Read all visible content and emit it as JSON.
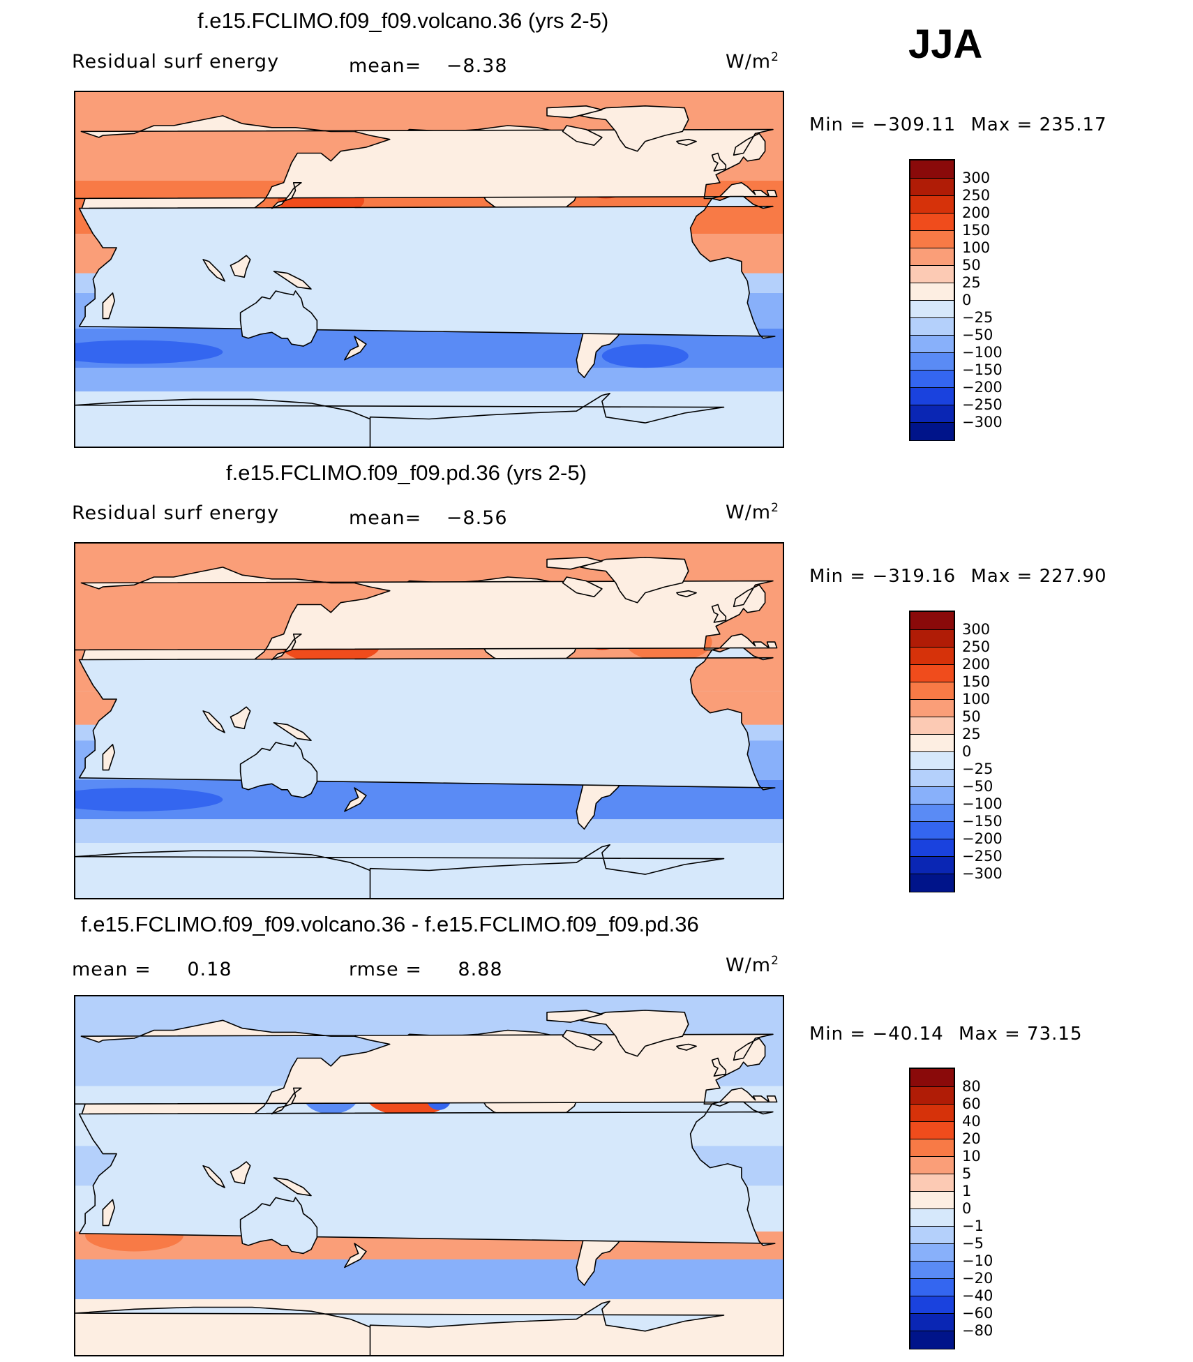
{
  "season": "JJA",
  "panels": [
    {
      "title": "f.e15.FCLIMO.f09_f09.volcano.36 (yrs 2-5)",
      "left_label": "Residual surf energy",
      "center_label": "mean=",
      "center_value": "−8.38",
      "units_base": "W/m",
      "units_exp": "2",
      "min_label": "Min",
      "min_value": "−309.11",
      "max_label": "Max",
      "max_value": "235.17"
    },
    {
      "title": "f.e15.FCLIMO.f09_f09.pd.36 (yrs 2-5)",
      "left_label": "Residual surf energy",
      "center_label": "mean=",
      "center_value": "−8.56",
      "units_base": "W/m",
      "units_exp": "2",
      "min_label": "Min",
      "min_value": "−319.16",
      "max_label": "Max",
      "max_value": "227.90"
    },
    {
      "title": "f.e15.FCLIMO.f09_f09.volcano.36 - f.e15.FCLIMO.f09_f09.pd.36",
      "left_label": "mean =",
      "left_value": "0.18",
      "center_label": "rmse =",
      "center_value": "8.88",
      "units_base": "W/m",
      "units_exp": "2",
      "min_label": "Min",
      "min_value": "−40.14",
      "max_label": "Max",
      "max_value": "73.15"
    }
  ],
  "chart_data": [
    {
      "type": "heatmap",
      "title": "f.e15.FCLIMO.f09_f09.volcano.36 (yrs 2-5)",
      "variable": "Residual surf energy",
      "units": "W/m2",
      "mean": -8.38,
      "min": -309.11,
      "max": 235.17,
      "levels": [
        300,
        250,
        200,
        150,
        100,
        50,
        25,
        0,
        -25,
        -50,
        -100,
        -150,
        -200,
        -250,
        -300
      ],
      "level_labels": [
        "300",
        "250",
        "200",
        "150",
        "100",
        "50",
        "25",
        "0",
        "−25",
        "−50",
        "−100",
        "−150",
        "−200",
        "−250",
        "−300"
      ],
      "colors": [
        "#8a0a0a",
        "#b01c06",
        "#d6320a",
        "#f04c1c",
        "#f87a46",
        "#fa9e78",
        "#fccab4",
        "#fdeee2",
        "#d6e8fb",
        "#b4d0fb",
        "#88b0fa",
        "#5a8bf5",
        "#3466f0",
        "#1a42de",
        "#0a26b4",
        "#00148a"
      ]
    },
    {
      "type": "heatmap",
      "title": "f.e15.FCLIMO.f09_f09.pd.36 (yrs 2-5)",
      "variable": "Residual surf energy",
      "units": "W/m2",
      "mean": -8.56,
      "min": -319.16,
      "max": 227.9,
      "levels": [
        300,
        250,
        200,
        150,
        100,
        50,
        25,
        0,
        -25,
        -50,
        -100,
        -150,
        -200,
        -250,
        -300
      ],
      "level_labels": [
        "300",
        "250",
        "200",
        "150",
        "100",
        "50",
        "25",
        "0",
        "−25",
        "−50",
        "−100",
        "−150",
        "−200",
        "−250",
        "−300"
      ],
      "colors": [
        "#8a0a0a",
        "#b01c06",
        "#d6320a",
        "#f04c1c",
        "#f87a46",
        "#fa9e78",
        "#fccab4",
        "#fdeee2",
        "#d6e8fb",
        "#b4d0fb",
        "#88b0fa",
        "#5a8bf5",
        "#3466f0",
        "#1a42de",
        "#0a26b4",
        "#00148a"
      ]
    },
    {
      "type": "heatmap",
      "title": "f.e15.FCLIMO.f09_f09.volcano.36 - f.e15.FCLIMO.f09_f09.pd.36",
      "units": "W/m2",
      "mean": 0.18,
      "rmse": 8.88,
      "min": -40.14,
      "max": 73.15,
      "levels": [
        80,
        60,
        40,
        20,
        10,
        5,
        1,
        0,
        -1,
        -5,
        -10,
        -20,
        -40,
        -60,
        -80
      ],
      "level_labels": [
        "80",
        "60",
        "40",
        "20",
        "10",
        "5",
        "1",
        "0",
        "−1",
        "−5",
        "−10",
        "−20",
        "−40",
        "−60",
        "−80"
      ],
      "colors": [
        "#8a0a0a",
        "#b01c06",
        "#d6320a",
        "#f04c1c",
        "#f87a46",
        "#fa9e78",
        "#fccab4",
        "#fdeee2",
        "#d6e8fb",
        "#b4d0fb",
        "#88b0fa",
        "#5a8bf5",
        "#3466f0",
        "#1a42de",
        "#0a26b4",
        "#00148a"
      ]
    }
  ]
}
